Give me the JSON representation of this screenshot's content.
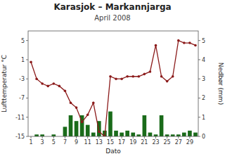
{
  "chart_data": {
    "type": "bar",
    "title": "Karasjok – Markannjarga",
    "subtitle": "April 2008",
    "xlabel": "Dato",
    "ylabel": "Lufttemperatur °C",
    "y2label": "Nedbør (mm)",
    "x": [
      1,
      2,
      3,
      4,
      5,
      6,
      7,
      8,
      9,
      10,
      11,
      12,
      13,
      14,
      15,
      16,
      17,
      18,
      19,
      20,
      21,
      22,
      23,
      24,
      25,
      26,
      27,
      28,
      29,
      30
    ],
    "xlim": [
      0.5,
      30.5
    ],
    "xticks": [
      1,
      3,
      5,
      7,
      9,
      11,
      13,
      15,
      17,
      19,
      21,
      23,
      25,
      27,
      29
    ],
    "ylim": [
      -15.0,
      7.0
    ],
    "yticks": [
      -15,
      -11,
      -7,
      -3,
      1,
      5
    ],
    "y2lim": [
      0.0,
      5.5
    ],
    "y2ticks": [
      0,
      1,
      2,
      3,
      4,
      5
    ],
    "grid": false,
    "series": [
      {
        "type": "bar",
        "axis": "y2",
        "color": "#1a6b1a",
        "values": [
          0.0,
          0.1,
          0.1,
          0.0,
          0.1,
          0.0,
          0.5,
          1.1,
          0.8,
          1.1,
          0.6,
          0.2,
          0.8,
          0.3,
          1.3,
          0.3,
          0.2,
          0.3,
          0.2,
          0.1,
          1.1,
          0.2,
          0.1,
          1.1,
          0.1,
          0.1,
          0.1,
          0.2,
          0.3,
          0.2
        ]
      },
      {
        "type": "line",
        "color": "#8b1a1a",
        "marker": "circle",
        "values": [
          0.5,
          -3.0,
          -4.0,
          -4.5,
          -4.0,
          -4.5,
          -5.5,
          -8.0,
          -9.0,
          -12.0,
          -10.5,
          -8.0,
          -14.0,
          -15.0,
          -2.5,
          -3.0,
          -3.0,
          -2.5,
          -2.5,
          -2.5,
          -2.0,
          -1.5,
          4.0,
          -2.5,
          -3.5,
          -2.5,
          5.0,
          4.5,
          4.5,
          4.0
        ]
      }
    ]
  }
}
